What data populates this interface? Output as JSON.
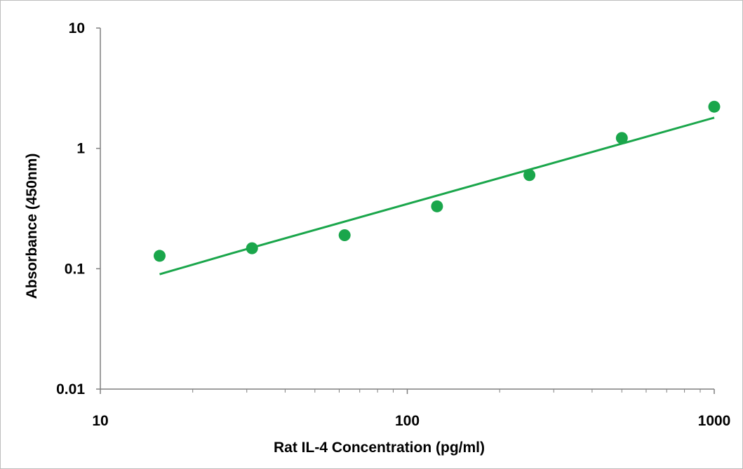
{
  "chart_data": {
    "type": "scatter",
    "title": "",
    "xlabel": "Rat IL-4 Concentration (pg/ml)",
    "ylabel": "Absorbance (450nm)",
    "x_scale": "log",
    "y_scale": "log",
    "xlim": [
      10,
      1000
    ],
    "ylim": [
      0.01,
      10
    ],
    "x_tick_labels": [
      "10",
      "100",
      "1000"
    ],
    "y_tick_labels": [
      "0.01",
      "0.1",
      "1",
      "10"
    ],
    "grid": false,
    "legend": "none",
    "series": [
      {
        "marker_color": "#1aa64b",
        "points": [
          {
            "x": 15.6,
            "y": 0.128
          },
          {
            "x": 31.2,
            "y": 0.148
          },
          {
            "x": 62.5,
            "y": 0.19
          },
          {
            "x": 125,
            "y": 0.33
          },
          {
            "x": 250,
            "y": 0.6
          },
          {
            "x": 500,
            "y": 1.22
          },
          {
            "x": 1000,
            "y": 2.22
          }
        ]
      }
    ],
    "fit_line": {
      "color": "#1aa64b",
      "points": [
        {
          "x": 15.6,
          "y": 0.09
        },
        {
          "x": 27,
          "y": 0.135
        },
        {
          "x": 1000,
          "y": 1.8
        }
      ]
    }
  }
}
